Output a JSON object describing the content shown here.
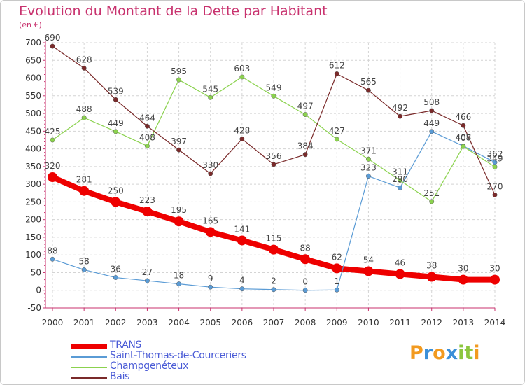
{
  "header": {
    "title": "Evolution du Montant de la Dette par Habitant",
    "unit": "(en €)"
  },
  "brand": {
    "letters": [
      "P",
      "r",
      "o",
      "x",
      "i",
      "t",
      "i"
    ],
    "colors": [
      "#f29a1f",
      "#3a8fd8",
      "#f29a1f",
      "#3a8fd8",
      "#8cc63f",
      "#8cc63f",
      "#f29a1f"
    ]
  },
  "chart_data": {
    "type": "line",
    "x": [
      "2000",
      "2001",
      "2002",
      "2003",
      "2004",
      "2005",
      "2006",
      "2007",
      "2008",
      "2009",
      "2010",
      "2011",
      "2012",
      "2013",
      "2014"
    ],
    "ylim": [
      -50,
      700
    ],
    "yticks": [
      -50,
      0,
      50,
      100,
      150,
      200,
      250,
      300,
      350,
      400,
      450,
      500,
      550,
      600,
      650,
      700
    ],
    "grid": true,
    "legend_position": "bottom-left",
    "series": [
      {
        "name": "TRANS",
        "color": "#ee0000",
        "values": [
          320,
          281,
          250,
          223,
          195,
          165,
          141,
          115,
          88,
          62,
          54,
          46,
          38,
          30,
          30
        ],
        "labels": [
          "320",
          "281",
          "250",
          "223",
          "195",
          "165",
          "141",
          "115",
          "88",
          "62",
          "54",
          "46",
          "38",
          "30",
          "30"
        ]
      },
      {
        "name": "Saint-Thomas-de-Courceriers",
        "color": "#5a9bd5",
        "values": [
          88,
          58,
          36,
          27,
          18,
          9,
          4,
          2,
          0,
          1,
          323,
          290,
          449,
          408,
          362
        ],
        "labels": [
          "88",
          "58",
          "36",
          "27",
          "18",
          "9",
          "4",
          "2",
          "0",
          "1",
          "323",
          "290",
          "449",
          "408",
          "362"
        ]
      },
      {
        "name": "Champgenéteux",
        "color": "#8bd24e",
        "values": [
          425,
          488,
          449,
          408,
          595,
          545,
          603,
          549,
          497,
          427,
          371,
          311,
          251,
          407,
          349
        ],
        "labels": [
          "425",
          "488",
          "449",
          "408",
          "595",
          "545",
          "603",
          "549",
          "497",
          "427",
          "371",
          "311",
          "251",
          "407",
          "349"
        ]
      },
      {
        "name": "Bais",
        "color": "#7a2a2a",
        "values": [
          690,
          628,
          539,
          464,
          397,
          330,
          428,
          356,
          384,
          612,
          565,
          492,
          508,
          466,
          270
        ],
        "labels": [
          "690",
          "628",
          "539",
          "464",
          "397",
          "330",
          "428",
          "356",
          "384",
          "612",
          "565",
          "492",
          "508",
          "466",
          "270"
        ]
      }
    ]
  }
}
